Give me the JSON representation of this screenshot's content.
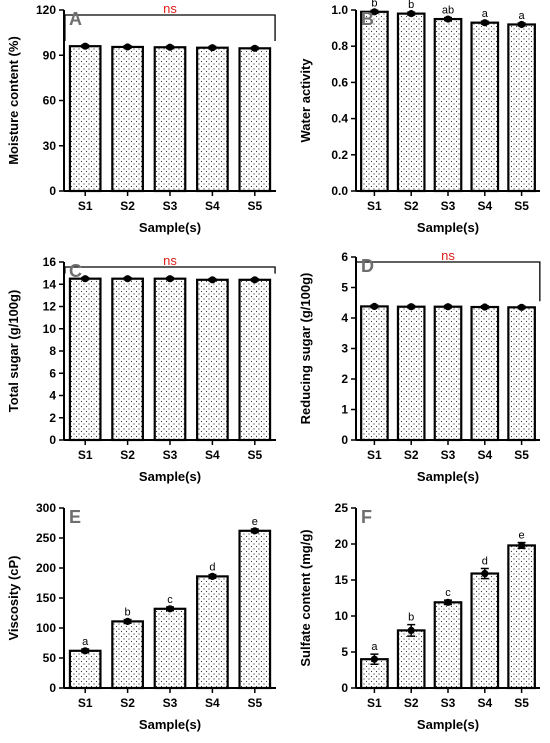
{
  "chart_data": [
    {
      "type": "bar",
      "panel": "A",
      "categories": [
        "S1",
        "S2",
        "S3",
        "S4",
        "S5"
      ],
      "values": [
        96.0,
        95.5,
        95.3,
        95.0,
        94.6
      ],
      "errors": [
        0.8,
        0.8,
        0.8,
        0.8,
        0.8
      ],
      "ylim": [
        0,
        120
      ],
      "yticks": [
        0,
        30,
        60,
        90,
        120
      ],
      "xlabel": "Sample(s)",
      "ylabel": "Moisture content (%)",
      "annotation": "ns",
      "letters": []
    },
    {
      "type": "bar",
      "panel": "B",
      "categories": [
        "S1",
        "S2",
        "S3",
        "S4",
        "S5"
      ],
      "values": [
        0.99,
        0.98,
        0.95,
        0.93,
        0.92
      ],
      "errors": [
        0.008,
        0.008,
        0.008,
        0.008,
        0.008
      ],
      "ylim": [
        0,
        1.0
      ],
      "yticks": [
        0.0,
        0.2,
        0.4,
        0.6,
        0.8,
        1.0
      ],
      "xlabel": "Sample(s)",
      "ylabel": "Water activity",
      "annotation": "",
      "letters": [
        "b",
        "b",
        "ab",
        "a",
        "a"
      ]
    },
    {
      "type": "bar",
      "panel": "C",
      "categories": [
        "S1",
        "S2",
        "S3",
        "S4",
        "S5"
      ],
      "values": [
        14.5,
        14.5,
        14.5,
        14.4,
        14.4
      ],
      "errors": [
        0.1,
        0.1,
        0.1,
        0.1,
        0.1
      ],
      "ylim": [
        0,
        16
      ],
      "yticks": [
        0,
        2,
        4,
        6,
        8,
        10,
        12,
        14,
        16
      ],
      "xlabel": "Sample(s)",
      "ylabel": "Total sugar (g/100g)",
      "annotation": "ns",
      "letters": []
    },
    {
      "type": "bar",
      "panel": "D",
      "categories": [
        "S1",
        "S2",
        "S3",
        "S4",
        "S5"
      ],
      "values": [
        4.38,
        4.37,
        4.37,
        4.36,
        4.35
      ],
      "errors": [
        0.04,
        0.04,
        0.04,
        0.04,
        0.04
      ],
      "ylim": [
        0,
        6
      ],
      "yticks": [
        0,
        1,
        2,
        3,
        4,
        5,
        6
      ],
      "xlabel": "Sample(s)",
      "ylabel": "Reducing sugar (g/100g)",
      "annotation": "ns",
      "letters": []
    },
    {
      "type": "bar",
      "panel": "E",
      "categories": [
        "S1",
        "S2",
        "S3",
        "S4",
        "S5"
      ],
      "values": [
        62,
        111,
        132,
        186,
        262
      ],
      "errors": [
        3,
        3,
        3,
        3,
        3
      ],
      "ylim": [
        0,
        300
      ],
      "yticks": [
        0,
        50,
        100,
        150,
        200,
        250,
        300
      ],
      "xlabel": "Sample(s)",
      "ylabel": "Viscosity (cP)",
      "annotation": "",
      "letters": [
        "a",
        "b",
        "c",
        "d",
        "e"
      ]
    },
    {
      "type": "bar",
      "panel": "F",
      "categories": [
        "S1",
        "S2",
        "S3",
        "S4",
        "S5"
      ],
      "values": [
        4.0,
        8.0,
        11.9,
        15.9,
        19.8
      ],
      "errors": [
        0.7,
        0.8,
        0.3,
        0.7,
        0.4
      ],
      "ylim": [
        0,
        25
      ],
      "yticks": [
        0,
        5,
        10,
        15,
        20,
        25
      ],
      "xlabel": "Sample(s)",
      "ylabel": "Sulfate content (mg/g)",
      "annotation": "",
      "letters": [
        "a",
        "b",
        "c",
        "d",
        "e"
      ]
    }
  ]
}
